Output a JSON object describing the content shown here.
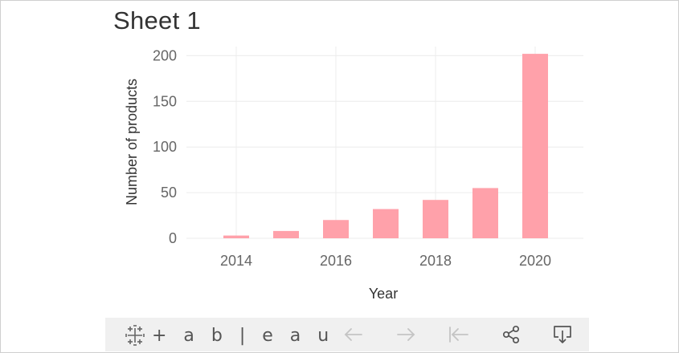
{
  "sheet_title": "Sheet 1",
  "toolbar": {
    "logo_text": "+ a b | e a u",
    "buttons": [
      "undo-icon",
      "redo-icon",
      "revert-icon",
      "share-icon",
      "download-icon"
    ]
  },
  "colors": {
    "bar": "#ffa1aa",
    "grid": "#ececec",
    "tick_text": "#666666",
    "axis_title": "#333333",
    "toolbar_bg": "#f0f0f0",
    "toolbar_icon_disabled": "#c4c4c4",
    "toolbar_icon_active": "#555555"
  },
  "chart_data": {
    "type": "bar",
    "title": "Sheet 1",
    "xlabel": "Year",
    "ylabel": "Number of products",
    "categories": [
      "2014",
      "2015",
      "2016",
      "2017",
      "2018",
      "2019",
      "2020"
    ],
    "values": [
      3,
      8,
      20,
      32,
      42,
      55,
      202
    ],
    "x_tick_labels": [
      "2014",
      "2016",
      "2018",
      "2020"
    ],
    "y_tick_labels": [
      "0",
      "50",
      "100",
      "150",
      "200"
    ],
    "y_ticks": [
      0,
      50,
      100,
      150,
      200
    ],
    "ylim": [
      0,
      210
    ],
    "grid": true,
    "legend": "none"
  }
}
